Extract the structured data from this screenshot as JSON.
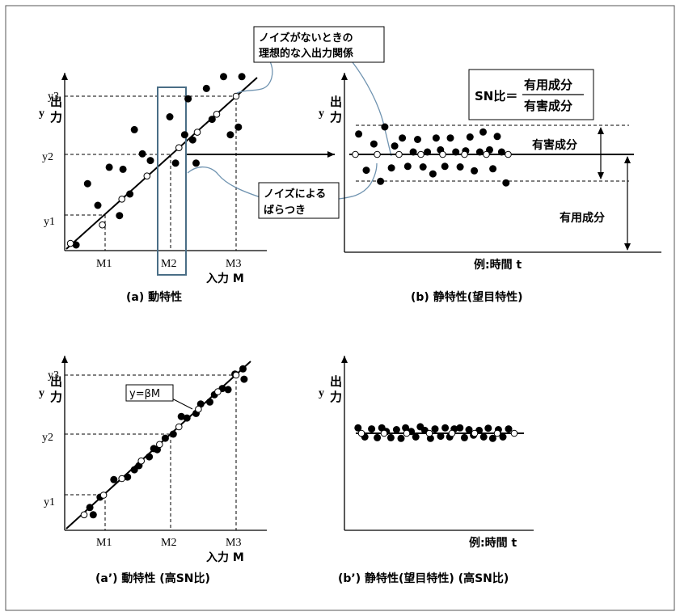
{
  "labels": {
    "y": "y",
    "output": "出",
    "output2": "力",
    "y1": "y1",
    "y2": "y2",
    "y3": "y3",
    "m1": "M1",
    "m2": "M2",
    "m3": "M3",
    "input_axis": "入力  M",
    "time_axis": "例:時間  t"
  },
  "callouts": {
    "ideal_line": [
      "ノイズがないときの",
      "理想的な入出力関係"
    ],
    "noise_scatter": [
      "ノイズによる",
      "ばらつき"
    ],
    "harmful": "有害成分",
    "useful": "有用成分",
    "sn_left": "SN比＝",
    "sn_num": "有用成分",
    "sn_den": "有害成分",
    "beta": "y=βM"
  },
  "captions": {
    "a": "(a) 動特性",
    "b": "(b)  静特性(望目特性)",
    "a2": "(a’) 動特性 (高SN比)",
    "b2": "(b’)  静特性(望目特性) (高SN比)"
  },
  "colors": {
    "callout_line": "#6f93b0",
    "highlight_box": "#4a6e86",
    "ink": "#000000"
  },
  "chart_data": [
    {
      "type": "scatter",
      "title": "(a) 動特性",
      "xlabel": "入力  M",
      "ylabel": "出力 y",
      "x_ticks": [
        "M1",
        "M2",
        "M3"
      ],
      "y_ticks": [
        "y1",
        "y2",
        "y3"
      ],
      "ideal": [
        [
          1,
          1
        ],
        [
          2,
          2
        ],
        [
          3,
          3
        ]
      ],
      "open_points": [
        [
          0.1,
          0.14
        ],
        [
          0.66,
          0.5
        ],
        [
          1.0,
          1.0
        ],
        [
          1.44,
          1.45
        ],
        [
          2.0,
          2.0
        ],
        [
          2.32,
          2.3
        ],
        [
          2.66,
          2.65
        ],
        [
          3.0,
          3.0
        ]
      ],
      "filled_points": [
        [
          0.2,
          0.11
        ],
        [
          0.4,
          1.3
        ],
        [
          0.58,
          0.88
        ],
        [
          0.78,
          1.62
        ],
        [
          0.96,
          0.68
        ],
        [
          1.02,
          1.58
        ],
        [
          1.14,
          1.1
        ],
        [
          1.22,
          2.35
        ],
        [
          1.36,
          1.88
        ],
        [
          1.5,
          1.75
        ],
        [
          1.84,
          2.6
        ],
        [
          1.94,
          1.7
        ],
        [
          2.1,
          2.25
        ],
        [
          2.16,
          2.95
        ],
        [
          2.24,
          2.15
        ],
        [
          2.3,
          1.7
        ],
        [
          2.48,
          3.15
        ],
        [
          2.58,
          2.55
        ],
        [
          2.78,
          3.38
        ],
        [
          2.9,
          2.25
        ],
        [
          3.04,
          2.4
        ],
        [
          3.1,
          3.38
        ]
      ]
    },
    {
      "type": "scatter",
      "title": "(b)  静特性(望目特性)",
      "xlabel": "例:時間  t",
      "ylabel": "出力 y",
      "target": 0,
      "open_points": [
        [
          1,
          0
        ],
        [
          3,
          0
        ],
        [
          5,
          0
        ],
        [
          7,
          0
        ],
        [
          9,
          0
        ],
        [
          11,
          0
        ],
        [
          13,
          0
        ],
        [
          15,
          0
        ]
      ],
      "filled_points": [
        [
          1.3,
          0.68
        ],
        [
          2.0,
          -0.53
        ],
        [
          2.7,
          0.35
        ],
        [
          3.3,
          -0.9
        ],
        [
          3.7,
          0.92
        ],
        [
          4.3,
          -0.45
        ],
        [
          4.6,
          0.28
        ],
        [
          5.3,
          0.55
        ],
        [
          5.8,
          -0.4
        ],
        [
          6.3,
          0.08
        ],
        [
          6.7,
          0.5
        ],
        [
          7.2,
          -0.42
        ],
        [
          7.6,
          0.08
        ],
        [
          8.1,
          -0.65
        ],
        [
          8.4,
          0.55
        ],
        [
          8.8,
          0.15
        ],
        [
          9.2,
          -0.4
        ],
        [
          9.7,
          0.55
        ],
        [
          10.2,
          0.08
        ],
        [
          10.6,
          -0.42
        ],
        [
          11.1,
          0.12
        ],
        [
          11.5,
          0.58
        ],
        [
          11.9,
          -0.55
        ],
        [
          12.4,
          0.08
        ],
        [
          12.7,
          0.75
        ],
        [
          13.3,
          0.15
        ],
        [
          13.6,
          -0.48
        ],
        [
          14.0,
          0.6
        ],
        [
          14.4,
          0.08
        ],
        [
          14.8,
          -0.95
        ]
      ]
    },
    {
      "type": "scatter",
      "title": "(a’) 動特性 (高SN比)",
      "xlabel": "入力  M",
      "ylabel": "出力 y",
      "x_ticks": [
        "M1",
        "M2",
        "M3"
      ],
      "y_ticks": [
        "y1",
        "y2",
        "y3"
      ],
      "ideal": [
        [
          1,
          1
        ],
        [
          2,
          2
        ],
        [
          3,
          3
        ]
      ],
      "fit_label": "y=βM",
      "open_points": [
        [
          0.34,
          0.3
        ],
        [
          0.68,
          0.68
        ],
        [
          1.0,
          1.0
        ],
        [
          1.34,
          1.34
        ],
        [
          1.66,
          1.66
        ],
        [
          2.0,
          2.0
        ],
        [
          2.34,
          2.34
        ],
        [
          2.68,
          2.68
        ],
        [
          3.0,
          3.0
        ]
      ],
      "filled_points": [
        [
          0.44,
          0.44
        ],
        [
          0.5,
          0.3
        ],
        [
          0.62,
          0.64
        ],
        [
          0.86,
          0.98
        ],
        [
          1.1,
          1.03
        ],
        [
          1.22,
          1.17
        ],
        [
          1.3,
          1.25
        ],
        [
          1.48,
          1.42
        ],
        [
          1.56,
          1.58
        ],
        [
          1.62,
          1.56
        ],
        [
          1.76,
          1.78
        ],
        [
          1.9,
          1.86
        ],
        [
          2.04,
          2.2
        ],
        [
          2.14,
          2.17
        ],
        [
          2.3,
          2.26
        ],
        [
          2.38,
          2.44
        ],
        [
          2.54,
          2.48
        ],
        [
          2.62,
          2.62
        ],
        [
          2.76,
          2.74
        ],
        [
          2.86,
          2.72
        ],
        [
          2.98,
          3.02
        ],
        [
          3.12,
          3.12
        ],
        [
          3.14,
          2.92
        ]
      ]
    },
    {
      "type": "scatter",
      "title": "(b’)  静特性(望目特性) (高SN比)",
      "xlabel": "例:時間  t",
      "ylabel": "出力 y",
      "target": 0,
      "open_points": [
        [
          1.5,
          0
        ],
        [
          3.5,
          0
        ],
        [
          5.5,
          0
        ],
        [
          7.5,
          0
        ],
        [
          9.5,
          0
        ],
        [
          11.5,
          0
        ],
        [
          13.5,
          0
        ],
        [
          15,
          0
        ]
      ],
      "filled_points": [
        [
          1.2,
          0.15
        ],
        [
          1.8,
          -0.1
        ],
        [
          2.4,
          0.12
        ],
        [
          2.9,
          -0.12
        ],
        [
          3.3,
          0.15
        ],
        [
          3.7,
          0.05
        ],
        [
          4.1,
          -0.12
        ],
        [
          4.6,
          0.1
        ],
        [
          5.0,
          -0.14
        ],
        [
          5.4,
          0.15
        ],
        [
          5.9,
          0.05
        ],
        [
          6.3,
          -0.1
        ],
        [
          6.7,
          0.18
        ],
        [
          7.1,
          0.08
        ],
        [
          7.6,
          -0.14
        ],
        [
          8.0,
          0.12
        ],
        [
          8.5,
          -0.08
        ],
        [
          8.9,
          0.15
        ],
        [
          9.3,
          -0.1
        ],
        [
          9.7,
          0.12
        ],
        [
          10.2,
          0.15
        ],
        [
          10.6,
          -0.12
        ],
        [
          11.0,
          0.1
        ],
        [
          11.4,
          -0.05
        ],
        [
          11.9,
          0.08
        ],
        [
          12.3,
          -0.1
        ],
        [
          12.7,
          0.14
        ],
        [
          13.1,
          -0.14
        ],
        [
          13.6,
          0.1
        ],
        [
          14.0,
          -0.1
        ],
        [
          14.5,
          0.12
        ]
      ]
    }
  ]
}
